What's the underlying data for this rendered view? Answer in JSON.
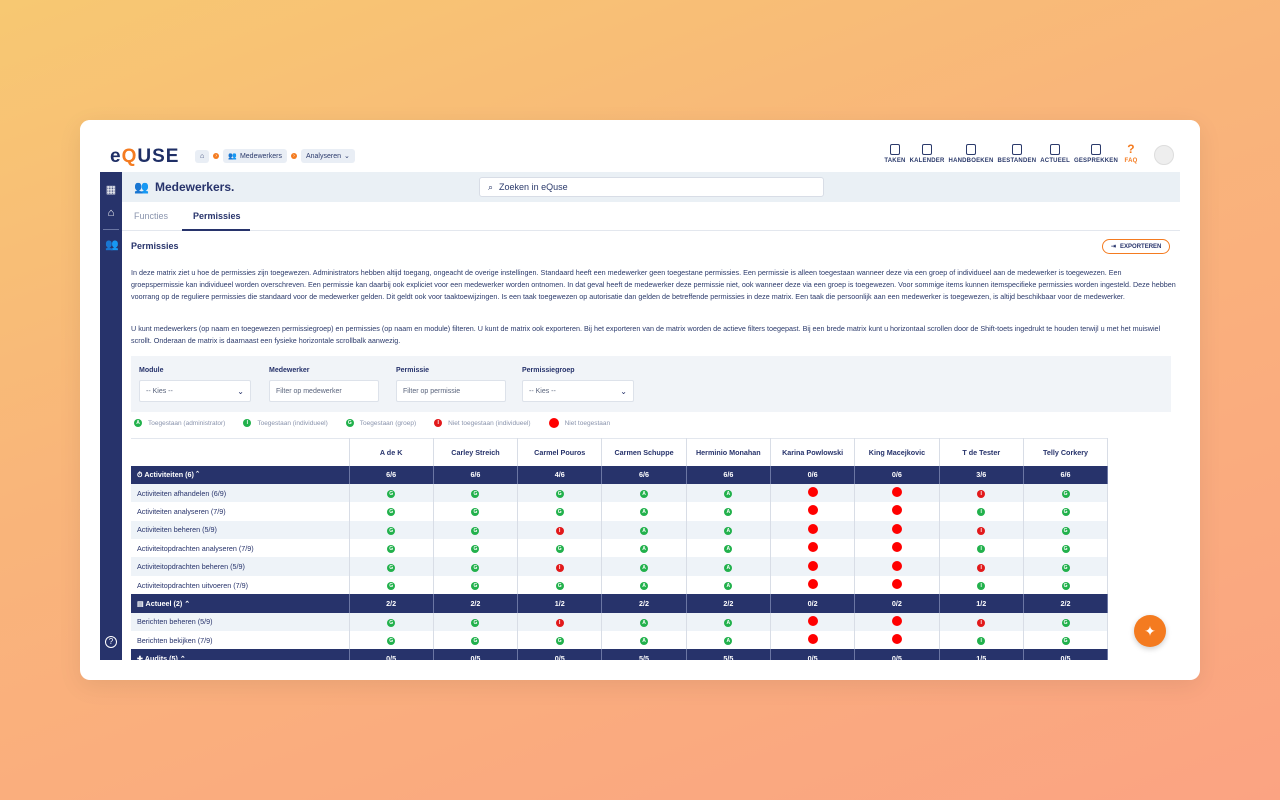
{
  "app": {
    "logo_pre": "e",
    "logo_q": "Q",
    "logo_post": "USE"
  },
  "breadcrumb": {
    "home": "⌂",
    "medewerkers": "Medewerkers",
    "analyseren": "Analyseren"
  },
  "topnav": [
    "TAKEN",
    "KALENDER",
    "HANDBOEKEN",
    "BESTANDEN",
    "ACTUEEL",
    "GESPREKKEN",
    "FAQ"
  ],
  "header": {
    "title": "Medewerkers.",
    "search_placeholder": "Zoeken in eQuse"
  },
  "tabs": [
    {
      "label": "Functies"
    },
    {
      "label": "Permissies"
    }
  ],
  "section": {
    "title": "Permissies",
    "export_label": "EXPORTEREN"
  },
  "paragraphs": [
    "In deze matrix ziet u hoe de permissies zijn toegewezen. Administrators hebben altijd toegang, ongeacht de overige instellingen. Standaard heeft een medewerker geen toegestane permissies. Een permissie is alleen toegestaan wanneer deze via een groep of individueel aan de medewerker is toegewezen. Een groepspermissie kan individueel worden overschreven. Een permissie kan daarbij ook expliciet voor een medewerker worden ontnomen. In dat geval heeft de medewerker deze permissie niet, ook wanneer deze via een groep is toegewezen. Voor sommige items kunnen itemspecifieke permissies worden ingesteld. Deze hebben voorrang op de reguliere permissies die standaard voor de medewerker gelden. Dit geldt ook voor taaktoewijzingen. Is een taak toegewezen op autorisatie dan gelden de betreffende permissies in deze matrix. Een taak die persoonlijk aan een medewerker is toegewezen, is altijd beschikbaar voor de medewerker.",
    "U kunt medewerkers (op naam en toegewezen permissiegroep) en permissies (op naam en module) filteren. U kunt de matrix ook exporteren. Bij het exporteren van de matrix worden de actieve filters toegepast. Bij een brede matrix kunt u horizontaal scrollen door de Shift-toets ingedrukt te houden terwijl u met het muiswiel scrollt. Onderaan de matrix is daarnaast een fysieke horizontale scrollbalk aanwezig."
  ],
  "filters": {
    "module": {
      "label": "Module",
      "value": "-- Kies --"
    },
    "medewerker": {
      "label": "Medewerker",
      "placeholder": "Filter op medewerker"
    },
    "permissie": {
      "label": "Permissie",
      "placeholder": "Filter op permissie"
    },
    "permissiegroep": {
      "label": "Permissiegroep",
      "value": "-- Kies --"
    }
  },
  "legend": [
    {
      "badge": "A",
      "type": "g",
      "label": "Toegestaan (administrator)"
    },
    {
      "badge": "I",
      "type": "g",
      "label": "Toegestaan (individueel)"
    },
    {
      "badge": "G",
      "type": "g",
      "label": "Toegestaan (groep)"
    },
    {
      "badge": "I",
      "type": "r",
      "label": "Niet toegestaan (individueel)"
    },
    {
      "badge": "",
      "type": "full",
      "label": "Niet toegestaan"
    }
  ],
  "matrix": {
    "columns": [
      "A de K",
      "Carley Streich",
      "Carmel Pouros",
      "Carmen Schuppe",
      "Herminio Monahan",
      "Karina Powlowski",
      "King Macejkovic",
      "T de Tester",
      "Telly Corkery"
    ],
    "rows": [
      {
        "type": "group",
        "icon": "⏱",
        "label": "Activiteiten (6)",
        "cells": [
          "6/6",
          "6/6",
          "4/6",
          "6/6",
          "6/6",
          "0/6",
          "0/6",
          "3/6",
          "6/6"
        ]
      },
      {
        "type": "row",
        "label": "Activiteiten afhandelen (6/9)",
        "cells": [
          "G",
          "G",
          "G",
          "A",
          "A",
          "X",
          "X",
          "RI",
          "G"
        ]
      },
      {
        "type": "row",
        "label": "Activiteiten analyseren (7/9)",
        "cells": [
          "G",
          "G",
          "G",
          "A",
          "A",
          "X",
          "X",
          "I",
          "G"
        ]
      },
      {
        "type": "row",
        "label": "Activiteiten beheren (5/9)",
        "cells": [
          "G",
          "G",
          "RI",
          "A",
          "A",
          "X",
          "X",
          "RI",
          "G"
        ]
      },
      {
        "type": "row",
        "label": "Activiteitopdrachten analyseren (7/9)",
        "cells": [
          "G",
          "G",
          "G",
          "A",
          "A",
          "X",
          "X",
          "I",
          "G"
        ]
      },
      {
        "type": "row",
        "label": "Activiteitopdrachten beheren (5/9)",
        "cells": [
          "G",
          "G",
          "RI",
          "A",
          "A",
          "X",
          "X",
          "RI",
          "G"
        ]
      },
      {
        "type": "row",
        "label": "Activiteitopdrachten uitvoeren (7/9)",
        "cells": [
          "G",
          "G",
          "G",
          "A",
          "A",
          "X",
          "X",
          "I",
          "G"
        ]
      },
      {
        "type": "group",
        "icon": "▤",
        "label": "Actueel (2)",
        "cells": [
          "2/2",
          "2/2",
          "1/2",
          "2/2",
          "2/2",
          "0/2",
          "0/2",
          "1/2",
          "2/2"
        ]
      },
      {
        "type": "row",
        "label": "Berichten beheren (5/9)",
        "cells": [
          "G",
          "G",
          "RI",
          "A",
          "A",
          "X",
          "X",
          "RI",
          "G"
        ]
      },
      {
        "type": "row",
        "label": "Berichten bekijken (7/9)",
        "cells": [
          "G",
          "G",
          "G",
          "A",
          "A",
          "X",
          "X",
          "I",
          "G"
        ]
      },
      {
        "type": "group",
        "icon": "✚",
        "label": "Audits (5)",
        "cells": [
          "0/5",
          "0/5",
          "0/5",
          "5/5",
          "5/5",
          "0/5",
          "0/5",
          "1/5",
          "0/5"
        ]
      }
    ]
  },
  "colors": {
    "navy": "#27336b",
    "orange": "#f47b20",
    "green": "#22b14c",
    "red": "#e2191b"
  }
}
